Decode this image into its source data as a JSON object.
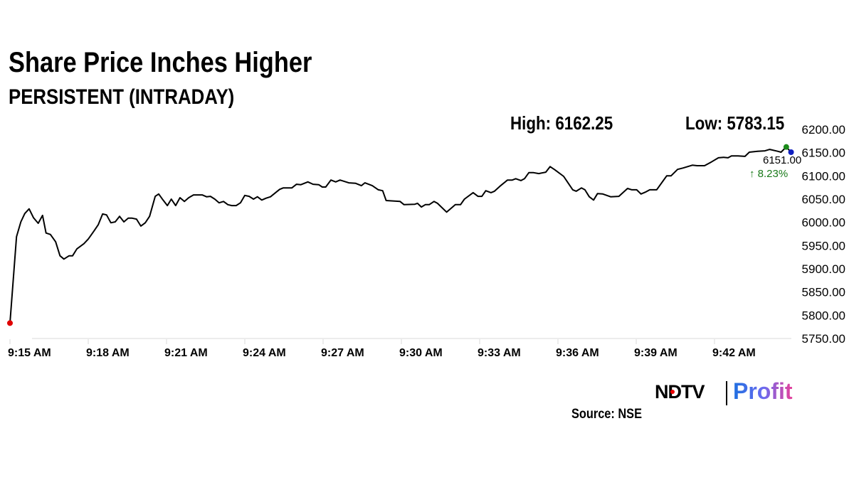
{
  "chart_data": {
    "type": "line",
    "title": "Share Price Inches Higher",
    "subtitle": "PERSISTENT (INTRADAY)",
    "high_label": "High: 6162.25",
    "low_label": "Low: 5783.15",
    "ylim": [
      5750,
      6200
    ],
    "y_ticks": [
      "6200.00",
      "6150.00",
      "6100.00",
      "6050.00",
      "6000.00",
      "5950.00",
      "5900.00",
      "5850.00",
      "5800.00",
      "5750.00"
    ],
    "y_tick_values": [
      6200,
      6150,
      6100,
      6050,
      6000,
      5950,
      5900,
      5850,
      5800,
      5750
    ],
    "x_ticks": [
      "9:15 AM",
      "9:18 AM",
      "9:21 AM",
      "9:24 AM",
      "9:27 AM",
      "9:30 AM",
      "9:33 AM",
      "9:36 AM",
      "9:39 AM",
      "9:42 AM"
    ],
    "grid": false,
    "line_color": "#000000",
    "markers": {
      "low_color": "#e00000",
      "high_color": "#1a8a1a",
      "last_color": "#1020c0"
    },
    "last_value_label": "6151.00",
    "change_label": "↑ 8.23%",
    "change_color": "#1a7a1a",
    "points": [
      [
        "9:15:00",
        5783.15
      ],
      [
        "9:15:15",
        5969
      ],
      [
        "9:15:25",
        6001
      ],
      [
        "9:15:34",
        6019
      ],
      [
        "9:15:44",
        6029
      ],
      [
        "9:15:54",
        6010
      ],
      [
        "9:16:05",
        5998
      ],
      [
        "9:16:15",
        6015
      ],
      [
        "9:16:23",
        5977
      ],
      [
        "9:16:33",
        5974
      ],
      [
        "9:16:45",
        5958
      ],
      [
        "9:16:55",
        5928
      ],
      [
        "9:17:04",
        5921
      ],
      [
        "9:17:16",
        5928
      ],
      [
        "9:17:24",
        5928
      ],
      [
        "9:17:34",
        5943
      ],
      [
        "9:17:50",
        5954
      ],
      [
        "9:18:00",
        5964
      ],
      [
        "9:18:13",
        5981
      ],
      [
        "9:18:23",
        5995
      ],
      [
        "9:18:33",
        6018
      ],
      [
        "9:18:42",
        6016
      ],
      [
        "9:18:52",
        5999
      ],
      [
        "9:19:02",
        6001
      ],
      [
        "9:19:12",
        6013
      ],
      [
        "9:19:22",
        6001
      ],
      [
        "9:19:32",
        6009
      ],
      [
        "9:19:41",
        6009
      ],
      [
        "9:19:51",
        6007
      ],
      [
        "9:20:01",
        5992
      ],
      [
        "9:20:11",
        5999
      ],
      [
        "9:20:21",
        6013
      ],
      [
        "9:20:34",
        6056
      ],
      [
        "9:20:42",
        6061
      ],
      [
        "9:20:52",
        6048
      ],
      [
        "9:21:02",
        6036
      ],
      [
        "9:21:11",
        6050
      ],
      [
        "9:21:21",
        6036
      ],
      [
        "9:21:31",
        6053
      ],
      [
        "9:21:41",
        6045
      ],
      [
        "9:21:51",
        6053
      ],
      [
        "9:22:02",
        6059
      ],
      [
        "9:22:15",
        6059
      ],
      [
        "9:22:22",
        6059
      ],
      [
        "9:22:32",
        6055
      ],
      [
        "9:22:41",
        6056
      ],
      [
        "9:22:51",
        6050
      ],
      [
        "9:23:01",
        6042
      ],
      [
        "9:23:11",
        6045
      ],
      [
        "9:23:21",
        6038
      ],
      [
        "9:23:30",
        6036
      ],
      [
        "9:23:40",
        6036
      ],
      [
        "9:23:50",
        6042
      ],
      [
        "9:24:00",
        6058
      ],
      [
        "9:24:10",
        6056
      ],
      [
        "9:24:20",
        6050
      ],
      [
        "9:24:29",
        6055
      ],
      [
        "9:24:39",
        6048
      ],
      [
        "9:24:49",
        6052
      ],
      [
        "9:24:59",
        6055
      ],
      [
        "9:25:20",
        6071
      ],
      [
        "9:25:28",
        6074
      ],
      [
        "9:25:48",
        6074
      ],
      [
        "9:25:59",
        6082
      ],
      [
        "9:26:09",
        6081
      ],
      [
        "9:26:25",
        6087
      ],
      [
        "9:26:37",
        6082
      ],
      [
        "9:26:50",
        6081
      ],
      [
        "9:26:58",
        6076
      ],
      [
        "9:27:06",
        6076
      ],
      [
        "9:27:18",
        6091
      ],
      [
        "9:27:29",
        6087
      ],
      [
        "9:27:39",
        6091
      ],
      [
        "9:27:59",
        6085
      ],
      [
        "9:28:15",
        6084
      ],
      [
        "9:28:28",
        6079
      ],
      [
        "9:28:36",
        6085
      ],
      [
        "9:28:53",
        6079
      ],
      [
        "9:29:07",
        6070
      ],
      [
        "9:29:17",
        6068
      ],
      [
        "9:29:25",
        6047
      ],
      [
        "9:29:57",
        6045
      ],
      [
        "9:30:06",
        6038
      ],
      [
        "9:30:31",
        6039
      ],
      [
        "9:30:37",
        6041
      ],
      [
        "9:30:46",
        6033
      ],
      [
        "9:30:55",
        6038
      ],
      [
        "9:31:04",
        6038
      ],
      [
        "9:31:15",
        6045
      ],
      [
        "9:31:23",
        6041
      ],
      [
        "9:31:44",
        6022
      ],
      [
        "9:32:04",
        6038
      ],
      [
        "9:32:16",
        6038
      ],
      [
        "9:32:25",
        6050
      ],
      [
        "9:32:45",
        6064
      ],
      [
        "9:32:56",
        6056
      ],
      [
        "9:33:05",
        6056
      ],
      [
        "9:33:14",
        6068
      ],
      [
        "9:33:26",
        6064
      ],
      [
        "9:33:34",
        6067
      ],
      [
        "9:33:47",
        6078
      ],
      [
        "9:34:04",
        6091
      ],
      [
        "9:34:15",
        6091
      ],
      [
        "9:34:23",
        6094
      ],
      [
        "9:34:35",
        6090
      ],
      [
        "9:34:43",
        6094
      ],
      [
        "9:34:53",
        6107
      ],
      [
        "9:35:04",
        6107
      ],
      [
        "9:35:16",
        6105
      ],
      [
        "9:35:32",
        6108
      ],
      [
        "9:35:42",
        6120
      ],
      [
        "9:35:53",
        6113
      ],
      [
        "9:36:13",
        6099
      ],
      [
        "9:36:34",
        6070
      ],
      [
        "9:36:42",
        6067
      ],
      [
        "9:36:54",
        6074
      ],
      [
        "9:37:02",
        6070
      ],
      [
        "9:37:12",
        6055
      ],
      [
        "9:37:22",
        6048
      ],
      [
        "9:37:31",
        6062
      ],
      [
        "9:37:43",
        6061
      ],
      [
        "9:38:01",
        6055
      ],
      [
        "9:38:20",
        6056
      ],
      [
        "9:38:40",
        6073
      ],
      [
        "9:38:50",
        6070
      ],
      [
        "9:39:01",
        6070
      ],
      [
        "9:39:11",
        6061
      ],
      [
        "9:39:21",
        6065
      ],
      [
        "9:39:31",
        6070
      ],
      [
        "9:39:47",
        6070
      ],
      [
        "9:40:10",
        6100
      ],
      [
        "9:40:20",
        6100
      ],
      [
        "9:40:35",
        6114
      ],
      [
        "9:40:48",
        6117
      ],
      [
        "9:41:09",
        6123
      ],
      [
        "9:41:20",
        6122
      ],
      [
        "9:41:37",
        6122
      ],
      [
        "9:41:53",
        6130
      ],
      [
        "9:42:09",
        6139
      ],
      [
        "9:42:21",
        6140
      ],
      [
        "9:42:31",
        6139
      ],
      [
        "9:42:39",
        6143
      ],
      [
        "9:42:54",
        6143
      ],
      [
        "9:43:10",
        6142
      ],
      [
        "9:43:20",
        6151
      ],
      [
        "9:43:39",
        6153
      ],
      [
        "9:43:56",
        6154
      ],
      [
        "9:44:07",
        6157
      ],
      [
        "9:44:25",
        6153
      ],
      [
        "9:44:33",
        6151
      ],
      [
        "9:44:45",
        6162.25
      ],
      [
        "9:44:56",
        6151.0
      ]
    ]
  },
  "branding": {
    "logo_ndtv": "NDTV",
    "logo_profit": "Profit"
  },
  "source": "Source: NSE"
}
